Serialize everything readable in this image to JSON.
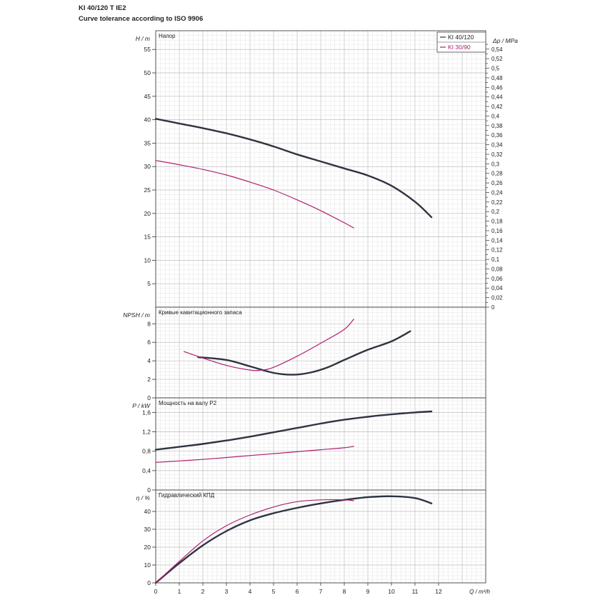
{
  "header": {
    "title": "KI 40/120 T IE2",
    "subtitle": "Curve tolerance according to ISO 9906"
  },
  "colors": {
    "series1": "#2e3440",
    "series2": "#b0206e",
    "grid": "#cfcfcf",
    "frame": "#444444"
  },
  "legend": {
    "placement": "top-right"
  },
  "x_axis": {
    "label": "Q / m³/h",
    "ticks": [
      "0",
      "1",
      "2",
      "3",
      "4",
      "5",
      "6",
      "7",
      "8",
      "9",
      "10",
      "11",
      "12"
    ],
    "range": [
      0,
      14.0
    ]
  },
  "chart_data": [
    {
      "type": "line",
      "title": "Напор",
      "ylabel": "H / m",
      "y2label": "Δp / MPa",
      "ylim": [
        0,
        59
      ],
      "y2lim": [
        0,
        0.5786
      ],
      "yticks": [
        "5",
        "10",
        "15",
        "20",
        "25",
        "30",
        "35",
        "40",
        "45",
        "50",
        "55"
      ],
      "y2ticks": [
        "0",
        "0,02",
        "0,04",
        "0,06",
        "0,08",
        "0,1",
        "0,12",
        "0,14",
        "0,16",
        "0,18",
        "0,2",
        "0,22",
        "0,24",
        "0,26",
        "0,28",
        "0,3",
        "0,32",
        "0,34",
        "0,36",
        "0,38",
        "0,4",
        "0,42",
        "0,44",
        "0,46",
        "0,48",
        "0,5",
        "0,52",
        "0,54"
      ],
      "series": [
        {
          "name": "KI 40/120",
          "x": [
            0,
            1,
            2,
            3,
            4,
            5,
            6,
            7,
            8,
            9,
            10,
            11,
            11.7
          ],
          "y": [
            40.2,
            39.2,
            38.2,
            37.1,
            35.8,
            34.3,
            32.6,
            31.1,
            29.6,
            28.1,
            25.9,
            22.5,
            19.2
          ]
        },
        {
          "name": "KI 30/90",
          "x": [
            0,
            1,
            2,
            3,
            4,
            5,
            6,
            7,
            8,
            8.4
          ],
          "y": [
            31.3,
            30.4,
            29.4,
            28.2,
            26.7,
            25.0,
            22.9,
            20.6,
            18.0,
            16.9
          ]
        }
      ]
    },
    {
      "type": "line",
      "title": "Кривые кавитационного запаса",
      "ylabel": "NPSH / m",
      "ylim": [
        0,
        9.8
      ],
      "yticks": [
        "0",
        "2",
        "4",
        "6",
        "8"
      ],
      "series": [
        {
          "name": "KI 40/120",
          "x": [
            1.8,
            3,
            4,
            5,
            5.8,
            6.5,
            7.3,
            8,
            9,
            10,
            10.8
          ],
          "y": [
            4.4,
            4.1,
            3.4,
            2.7,
            2.5,
            2.7,
            3.3,
            4.1,
            5.2,
            6.1,
            7.2
          ]
        },
        {
          "name": "KI 30/90",
          "x": [
            1.2,
            2,
            3,
            4,
            4.5,
            5,
            6,
            7,
            8,
            8.4
          ],
          "y": [
            5.0,
            4.3,
            3.5,
            3.0,
            3.0,
            3.3,
            4.5,
            5.9,
            7.4,
            8.5
          ]
        }
      ]
    },
    {
      "type": "line",
      "title": "Мощность на валу Р2",
      "ylabel": "P / kW",
      "ylim": [
        0,
        1.9
      ],
      "yticks": [
        "0",
        "0,4",
        "0,8",
        "1,2",
        "1,6"
      ],
      "series": [
        {
          "name": "KI 40/120",
          "x": [
            0,
            1,
            2,
            3,
            4,
            5,
            6,
            7,
            8,
            9,
            10,
            11,
            11.7
          ],
          "y": [
            0.83,
            0.89,
            0.95,
            1.02,
            1.1,
            1.19,
            1.28,
            1.37,
            1.45,
            1.51,
            1.56,
            1.6,
            1.62
          ]
        },
        {
          "name": "KI 30/90",
          "x": [
            0,
            1,
            2,
            3,
            4,
            5,
            6,
            7,
            8,
            8.4
          ],
          "y": [
            0.57,
            0.6,
            0.63,
            0.67,
            0.71,
            0.75,
            0.79,
            0.83,
            0.87,
            0.9
          ]
        }
      ]
    },
    {
      "type": "line",
      "title": "Гидравлический КПД",
      "ylabel": "η / %",
      "ylim": [
        0,
        52
      ],
      "yticks": [
        "0",
        "10",
        "20",
        "30",
        "40"
      ],
      "series": [
        {
          "name": "KI 40/120",
          "x": [
            0,
            1,
            2,
            3,
            4,
            5,
            6,
            7,
            8,
            9,
            10,
            11,
            11.7
          ],
          "y": [
            0,
            11,
            21,
            29,
            35,
            39,
            42,
            44.5,
            46.5,
            48,
            48.5,
            47.5,
            44.5
          ]
        },
        {
          "name": "KI 30/90",
          "x": [
            0,
            1,
            2,
            3,
            4,
            5,
            6,
            7,
            8,
            8.4
          ],
          "y": [
            0,
            12,
            23.5,
            32,
            38,
            42.5,
            45.5,
            46.5,
            46.5,
            46
          ]
        }
      ]
    }
  ]
}
